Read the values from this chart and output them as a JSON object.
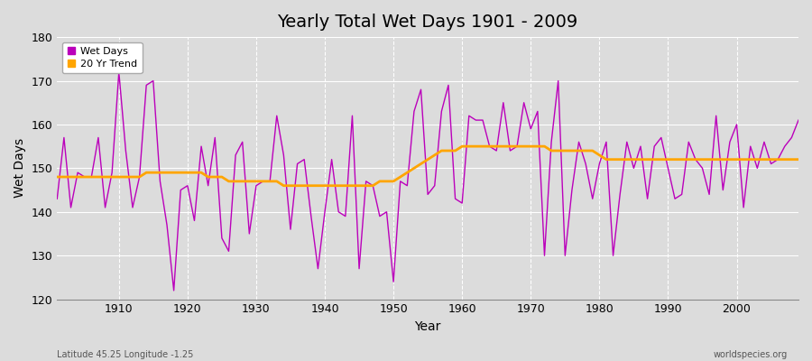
{
  "title": "Yearly Total Wet Days 1901 - 2009",
  "xlabel": "Year",
  "ylabel": "Wet Days",
  "bottom_left_label": "Latitude 45.25 Longitude -1.25",
  "bottom_right_label": "worldspecies.org",
  "line_color": "#BB00BB",
  "trend_color": "#FFA500",
  "background_color": "#DCDCDC",
  "plot_bg_color": "#DCDCDC",
  "ylim": [
    120,
    180
  ],
  "xlim": [
    1901,
    2009
  ],
  "yticks": [
    120,
    130,
    140,
    150,
    160,
    170,
    180
  ],
  "xticks": [
    1910,
    1920,
    1930,
    1940,
    1950,
    1960,
    1970,
    1980,
    1990,
    2000
  ],
  "years": [
    1901,
    1902,
    1903,
    1904,
    1905,
    1906,
    1907,
    1908,
    1909,
    1910,
    1911,
    1912,
    1913,
    1914,
    1915,
    1916,
    1917,
    1918,
    1919,
    1920,
    1921,
    1922,
    1923,
    1924,
    1925,
    1926,
    1927,
    1928,
    1929,
    1930,
    1931,
    1932,
    1933,
    1934,
    1935,
    1936,
    1937,
    1938,
    1939,
    1940,
    1941,
    1942,
    1943,
    1944,
    1945,
    1946,
    1947,
    1948,
    1949,
    1950,
    1951,
    1952,
    1953,
    1954,
    1955,
    1956,
    1957,
    1958,
    1959,
    1960,
    1961,
    1962,
    1963,
    1964,
    1965,
    1966,
    1967,
    1968,
    1969,
    1970,
    1971,
    1972,
    1973,
    1974,
    1975,
    1976,
    1977,
    1978,
    1979,
    1980,
    1981,
    1982,
    1983,
    1984,
    1985,
    1986,
    1987,
    1988,
    1989,
    1990,
    1991,
    1992,
    1993,
    1994,
    1995,
    1996,
    1997,
    1998,
    1999,
    2000,
    2001,
    2002,
    2003,
    2004,
    2005,
    2006,
    2007,
    2008,
    2009
  ],
  "wet_days": [
    143,
    157,
    141,
    149,
    148,
    148,
    157,
    141,
    149,
    172,
    154,
    141,
    148,
    169,
    170,
    147,
    137,
    122,
    145,
    146,
    138,
    155,
    146,
    157,
    134,
    131,
    153,
    156,
    135,
    146,
    147,
    147,
    162,
    153,
    136,
    151,
    152,
    139,
    127,
    140,
    152,
    140,
    139,
    162,
    127,
    147,
    146,
    139,
    140,
    124,
    147,
    146,
    163,
    168,
    144,
    146,
    163,
    169,
    143,
    142,
    162,
    161,
    161,
    155,
    154,
    165,
    154,
    155,
    165,
    159,
    163,
    130,
    156,
    170,
    130,
    145,
    156,
    151,
    143,
    151,
    156,
    130,
    144,
    156,
    150,
    155,
    143,
    155,
    157,
    150,
    143,
    144,
    156,
    152,
    150,
    144,
    162,
    145,
    156,
    160,
    141,
    155,
    150,
    156,
    151,
    152,
    155,
    157,
    161
  ],
  "trend_values": [
    148,
    148,
    148,
    148,
    148,
    148,
    148,
    148,
    148,
    148,
    148,
    148,
    148,
    149,
    149,
    149,
    149,
    149,
    149,
    149,
    149,
    149,
    148,
    148,
    148,
    147,
    147,
    147,
    147,
    147,
    147,
    147,
    147,
    146,
    146,
    146,
    146,
    146,
    146,
    146,
    146,
    146,
    146,
    146,
    146,
    146,
    146,
    147,
    147,
    147,
    148,
    149,
    150,
    151,
    152,
    153,
    154,
    154,
    154,
    155,
    155,
    155,
    155,
    155,
    155,
    155,
    155,
    155,
    155,
    155,
    155,
    155,
    154,
    154,
    154,
    154,
    154,
    154,
    154,
    153,
    152,
    152,
    152,
    152,
    152,
    152,
    152,
    152,
    152,
    152,
    152,
    152,
    152,
    152,
    152,
    152,
    152,
    152,
    152,
    152,
    152,
    152,
    152,
    152,
    152,
    152,
    152,
    152,
    152
  ]
}
